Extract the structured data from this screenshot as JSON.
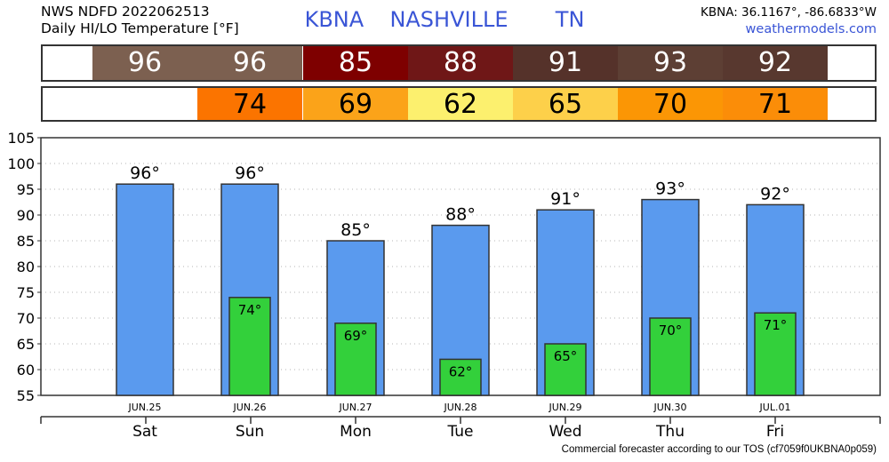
{
  "header": {
    "line1": "NWS NDFD 2022062513",
    "line2": "Daily HI/LO Temperature [°F]",
    "station": "KBNA",
    "city": "NASHVILLE",
    "state": "TN",
    "coords": "KBNA: 36.1167°, -86.6833°W",
    "site": "weathermodels.com"
  },
  "hi_strip": [
    {
      "value": "96",
      "color": "#7c6050",
      "text_color": "#ffffff"
    },
    {
      "value": "96",
      "color": "#7c6050",
      "text_color": "#ffffff"
    },
    {
      "value": "85",
      "color": "#7e0000",
      "text_color": "#ffffff"
    },
    {
      "value": "88",
      "color": "#6f1717",
      "text_color": "#ffffff"
    },
    {
      "value": "91",
      "color": "#55322a",
      "text_color": "#ffffff"
    },
    {
      "value": "93",
      "color": "#5d3f34",
      "text_color": "#ffffff"
    },
    {
      "value": "92",
      "color": "#58382f",
      "text_color": "#ffffff"
    }
  ],
  "lo_strip": [
    {
      "value": "",
      "color": "#ffffff",
      "text_color": "#000000"
    },
    {
      "value": "74",
      "color": "#fb7400",
      "text_color": "#000000"
    },
    {
      "value": "69",
      "color": "#fba319",
      "text_color": "#000000"
    },
    {
      "value": "62",
      "color": "#fcf06e",
      "text_color": "#000000"
    },
    {
      "value": "65",
      "color": "#fdd04a",
      "text_color": "#000000"
    },
    {
      "value": "70",
      "color": "#fb9605",
      "text_color": "#000000"
    },
    {
      "value": "71",
      "color": "#fb8d08",
      "text_color": "#000000"
    }
  ],
  "chart_data": {
    "type": "bar",
    "categories": [
      "Sat",
      "Sun",
      "Mon",
      "Tue",
      "Wed",
      "Thu",
      "Fri"
    ],
    "dates": [
      "JUN.25",
      "JUN.26",
      "JUN.27",
      "JUN.28",
      "JUN.29",
      "JUN.30",
      "JUL.01"
    ],
    "series": [
      {
        "values": [
          96,
          96,
          85,
          88,
          91,
          93,
          92
        ],
        "color": "#5a9aee"
      },
      {
        "values": [
          null,
          74,
          69,
          62,
          65,
          70,
          71
        ],
        "color": "#33d03b"
      }
    ],
    "hi_labels": [
      "96°",
      "96°",
      "85°",
      "88°",
      "91°",
      "93°",
      "92°"
    ],
    "lo_labels": [
      "",
      "74°",
      "69°",
      "62°",
      "65°",
      "70°",
      "71°"
    ],
    "ylim": [
      55,
      105
    ],
    "yticks": [
      55,
      60,
      65,
      70,
      75,
      80,
      85,
      90,
      95,
      100,
      105
    ],
    "grid": true
  },
  "footer": "Commercial forecaster according to our TOS (cf7059f0UKBNA0p059)"
}
